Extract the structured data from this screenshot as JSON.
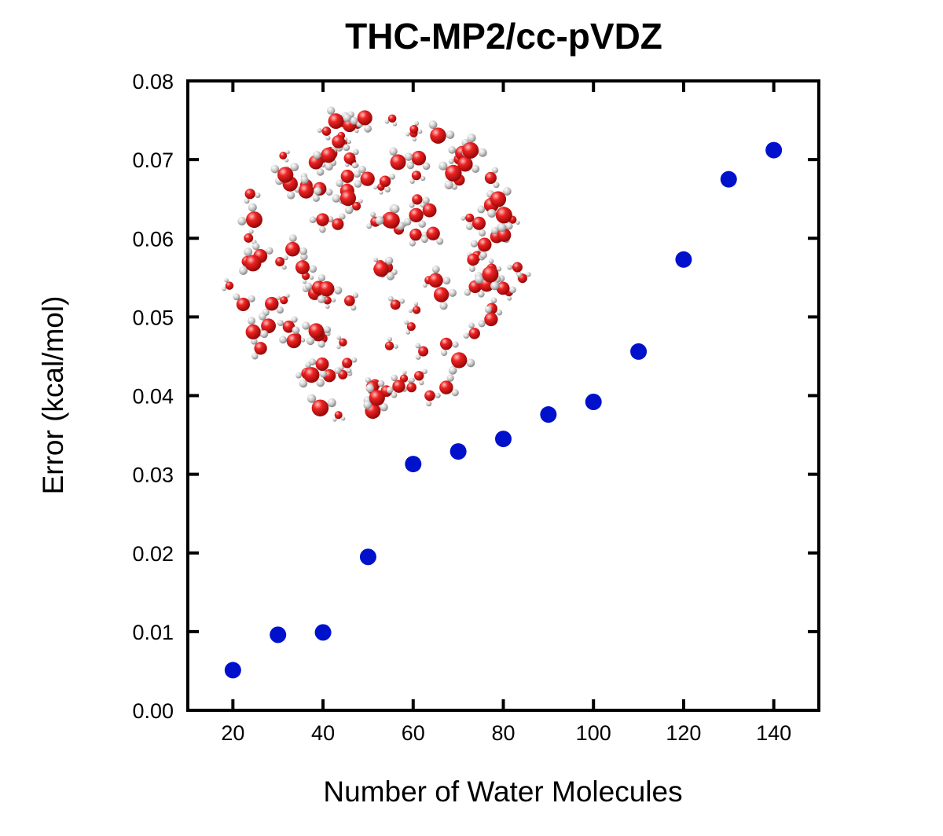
{
  "chart_data": {
    "type": "scatter",
    "title": "THC-MP2/cc-pVDZ",
    "xlabel": "Number of Water Molecules",
    "ylabel": "Error (kcal/mol)",
    "xlim": [
      10,
      150
    ],
    "ylim": [
      0,
      0.08
    ],
    "xticks": [
      "20",
      "40",
      "60",
      "80",
      "100",
      "120",
      "140"
    ],
    "yticks": [
      "0.00",
      "0.01",
      "0.02",
      "0.03",
      "0.04",
      "0.05",
      "0.06",
      "0.07",
      "0.08"
    ],
    "grid": false,
    "marker_color": "#0011cc",
    "inset": "water-cluster-molecule-image",
    "atom_colors": {
      "oxygen": "#e01818",
      "hydrogen": "#d4d4d4"
    },
    "series": [
      {
        "x": [
          20,
          30,
          40,
          50,
          60,
          70,
          80,
          90,
          100,
          110,
          120,
          130,
          140
        ],
        "y": [
          0.0051,
          0.0096,
          0.0099,
          0.0195,
          0.0313,
          0.0329,
          0.0345,
          0.0376,
          0.0392,
          0.0456,
          0.0573,
          0.0675,
          0.0712
        ]
      }
    ]
  }
}
